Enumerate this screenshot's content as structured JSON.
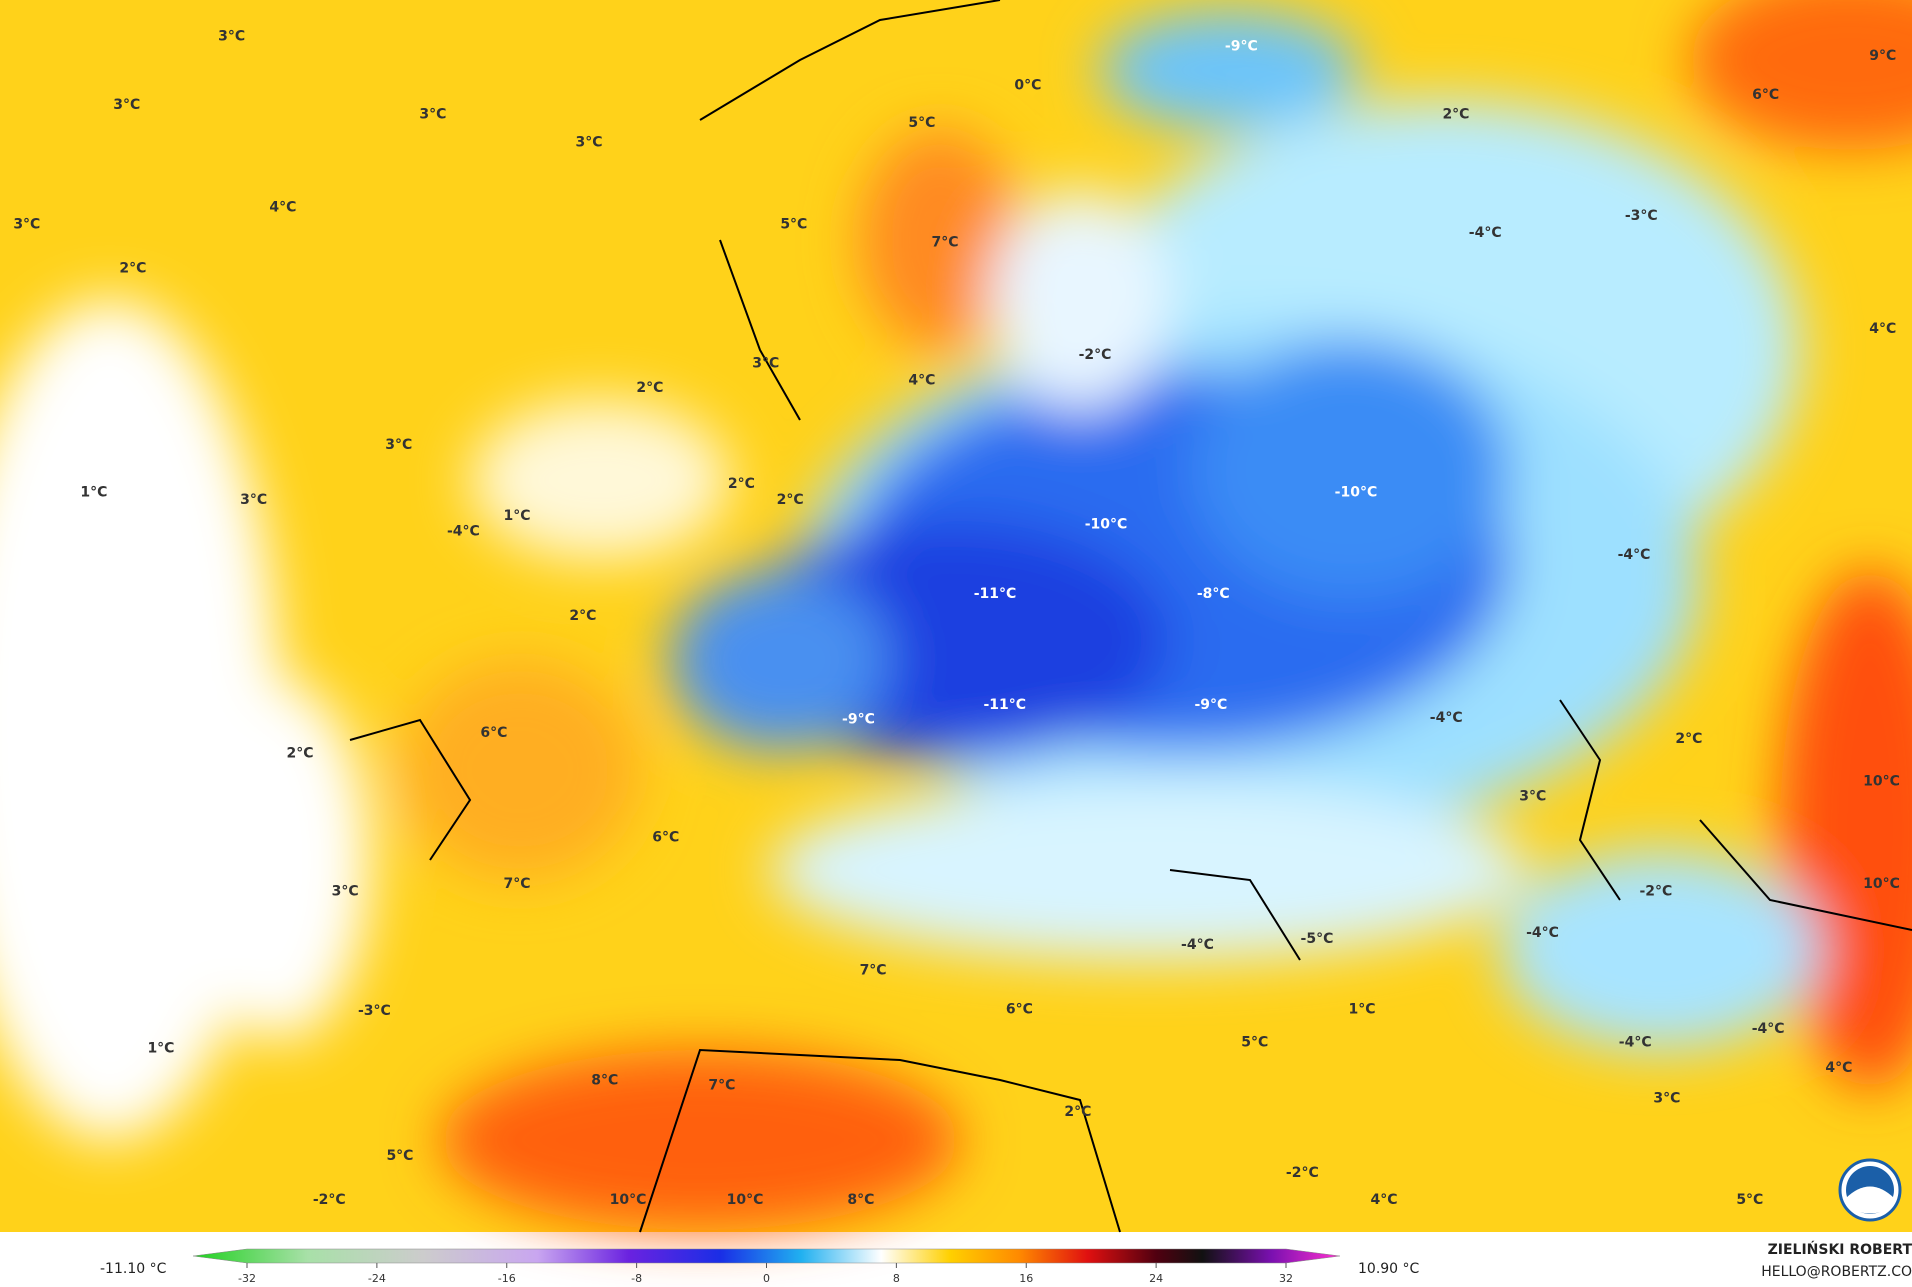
{
  "map": {
    "labels": [
      "3°C",
      "3°C",
      "3°C",
      "3°C",
      "4°C",
      "3°C",
      "2°C",
      "0°C",
      "-9°C",
      "5°C",
      "5°C",
      "7°C",
      "2°C",
      "9°C",
      "6°C",
      "-4°C",
      "-3°C",
      "4°C",
      "-2°C",
      "3°C",
      "4°C",
      "2°C",
      "3°C",
      "1°C",
      "3°C",
      "2°C",
      "2°C",
      "-4°C",
      "1°C",
      "-10°C",
      "-10°C",
      "-4°C",
      "-11°C",
      "-8°C",
      "2°C",
      "-11°C",
      "-9°C",
      "-9°C",
      "-4°C",
      "6°C",
      "2°C",
      "2°C",
      "3°C",
      "10°C",
      "6°C",
      "10°C",
      "7°C",
      "3°C",
      "-2°C",
      "-4°C",
      "-5°C",
      "-4°C",
      "7°C",
      "-3°C",
      "6°C",
      "1°C",
      "-4°C",
      "-4°C",
      "1°C",
      "5°C",
      "8°C",
      "7°C",
      "4°C",
      "3°C",
      "2°C",
      "5°C",
      "-2°C",
      "10°C",
      "10°C",
      "8°C",
      "4°C",
      "5°C",
      "-2°C"
    ]
  },
  "legend": {
    "min_label": "-11.10 °C",
    "max_label": "10.90 °C",
    "ticks": [
      -32,
      -24,
      -16,
      -8,
      0,
      8,
      16,
      24,
      32
    ]
  },
  "credit": {
    "name": "ZIELIŃSKI ROBERT",
    "contact": "HELLO@ROBERTZ.CO"
  }
}
